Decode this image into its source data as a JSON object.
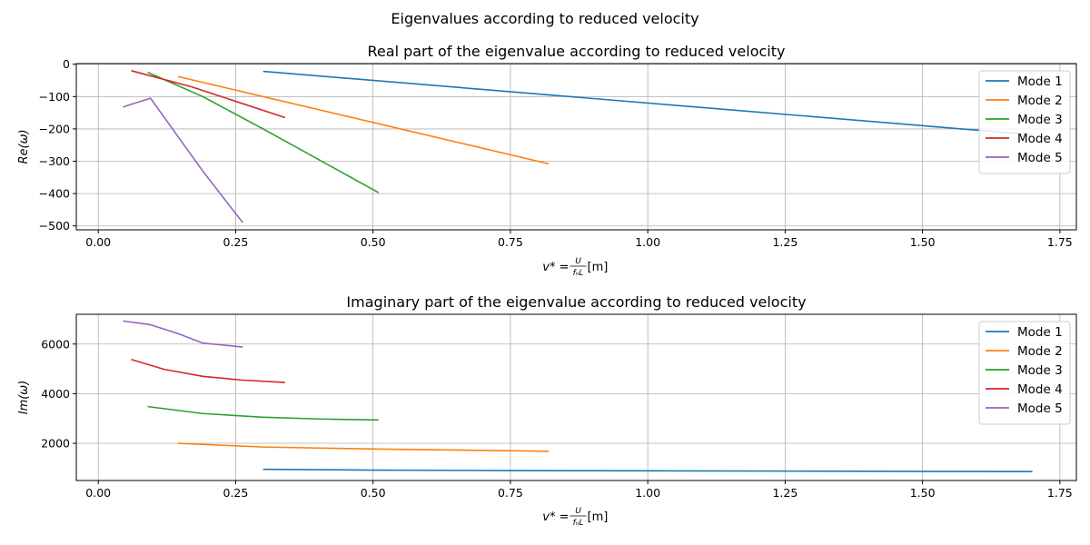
{
  "figure": {
    "title": "Eigenvalues according to reduced velocity"
  },
  "chart_data": [
    {
      "type": "line",
      "title": "Real part of the eigenvalue according to reduced velocity",
      "xlabel_main": "v* = ",
      "xlabel_frac_num": "U",
      "xlabel_frac_den": "fₙL",
      "xlabel_unit": " [m]",
      "ylabel": "Re(ω)",
      "xlim": [
        -0.04,
        1.78
      ],
      "ylim": [
        -512,
        2
      ],
      "xticks": [
        0.0,
        0.25,
        0.5,
        0.75,
        1.0,
        1.25,
        1.5,
        1.75
      ],
      "xtick_labels": [
        "0.00",
        "0.25",
        "0.50",
        "0.75",
        "1.00",
        "1.25",
        "1.50",
        "1.75"
      ],
      "yticks": [
        0,
        -100,
        -200,
        -300,
        -400,
        -500
      ],
      "ytick_labels": [
        "0",
        "−100",
        "−200",
        "−300",
        "−400",
        "−500"
      ],
      "grid": true,
      "legend_position": "top-right",
      "series": [
        {
          "name": "Mode 1",
          "color": "#1f77b4",
          "x": [
            0.3,
            1.7
          ],
          "y": [
            -22,
            -218
          ]
        },
        {
          "name": "Mode 2",
          "color": "#ff7f0e",
          "x": [
            0.145,
            0.82
          ],
          "y": [
            -38,
            -308
          ]
        },
        {
          "name": "Mode 3",
          "color": "#2ca02c",
          "x": [
            0.09,
            0.19,
            0.3,
            0.51
          ],
          "y": [
            -25,
            -100,
            -200,
            -397
          ]
        },
        {
          "name": "Mode 4",
          "color": "#d62728",
          "x": [
            0.06,
            0.17,
            0.34
          ],
          "y": [
            -20,
            -70,
            -165
          ]
        },
        {
          "name": "Mode 5",
          "color": "#9467bd",
          "x": [
            0.045,
            0.095,
            0.19,
            0.263
          ],
          "y": [
            -132,
            -105,
            -330,
            -490
          ]
        }
      ]
    },
    {
      "type": "line",
      "title": "Imaginary part of the eigenvalue according to reduced velocity",
      "xlabel_main": "v* = ",
      "xlabel_frac_num": "U",
      "xlabel_frac_den": "fₙL",
      "xlabel_unit": " [m]",
      "ylabel": "Im(ω)",
      "xlim": [
        -0.04,
        1.78
      ],
      "ylim": [
        500,
        7200
      ],
      "xticks": [
        0.0,
        0.25,
        0.5,
        0.75,
        1.0,
        1.25,
        1.5,
        1.75
      ],
      "xtick_labels": [
        "0.00",
        "0.25",
        "0.50",
        "0.75",
        "1.00",
        "1.25",
        "1.50",
        "1.75"
      ],
      "yticks": [
        2000,
        4000,
        6000
      ],
      "ytick_labels": [
        "2000",
        "4000",
        "6000"
      ],
      "grid": true,
      "legend_position": "top-right",
      "series": [
        {
          "name": "Mode 1",
          "color": "#1f77b4",
          "x": [
            0.3,
            0.5,
            0.75,
            1.0,
            1.25,
            1.5,
            1.7
          ],
          "y": [
            950,
            920,
            900,
            890,
            880,
            870,
            860
          ]
        },
        {
          "name": "Mode 2",
          "color": "#ff7f0e",
          "x": [
            0.145,
            0.3,
            0.5,
            0.82
          ],
          "y": [
            2000,
            1850,
            1770,
            1680
          ]
        },
        {
          "name": "Mode 3",
          "color": "#2ca02c",
          "x": [
            0.09,
            0.19,
            0.3,
            0.4,
            0.51
          ],
          "y": [
            3480,
            3200,
            3050,
            2980,
            2940
          ]
        },
        {
          "name": "Mode 4",
          "color": "#d62728",
          "x": [
            0.06,
            0.12,
            0.19,
            0.26,
            0.34
          ],
          "y": [
            5380,
            4980,
            4700,
            4550,
            4450
          ]
        },
        {
          "name": "Mode 5",
          "color": "#9467bd",
          "x": [
            0.045,
            0.095,
            0.145,
            0.19,
            0.263
          ],
          "y": [
            6930,
            6780,
            6420,
            6040,
            5880
          ]
        }
      ]
    }
  ]
}
